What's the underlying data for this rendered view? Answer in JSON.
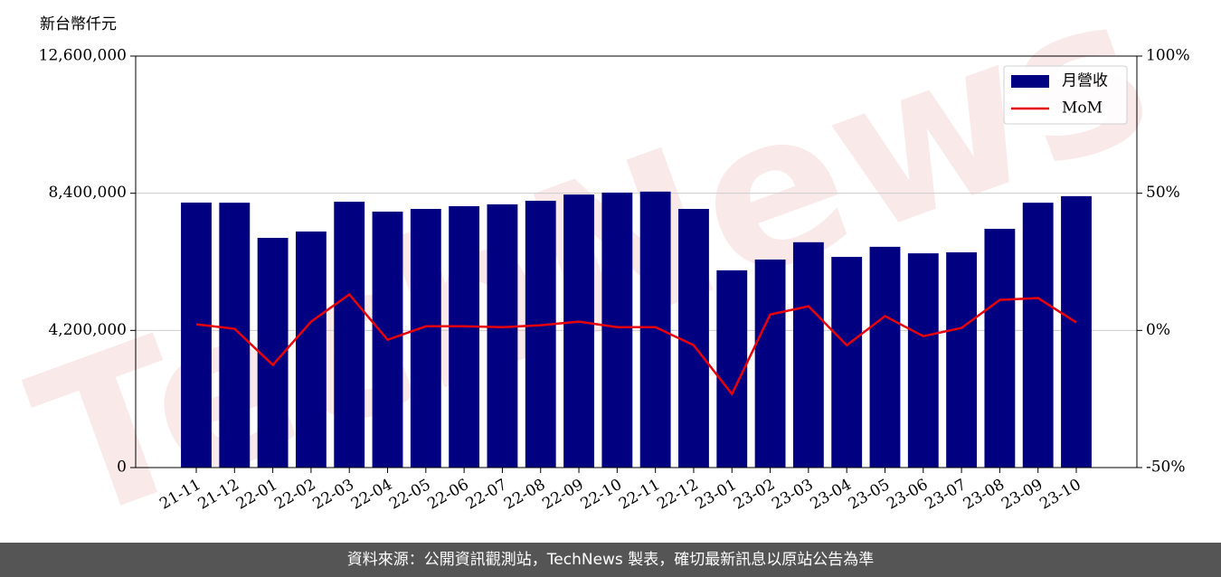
{
  "chart_data": {
    "type": "bar_line",
    "y_label": "新台幣仟元",
    "watermark": "TechNews",
    "footer": "資料來源：公開資訊觀測站，TechNews 製表，確切最新訊息以原站公告為準",
    "categories": [
      "21-11",
      "21-12",
      "22-01",
      "22-02",
      "22-03",
      "22-04",
      "22-05",
      "22-06",
      "22-07",
      "22-08",
      "22-09",
      "22-10",
      "22-11",
      "22-12",
      "23-01",
      "23-02",
      "23-03",
      "23-04",
      "23-05",
      "23-06",
      "23-07",
      "23-08",
      "23-09",
      "23-10"
    ],
    "series": [
      {
        "name": "月營收",
        "color": "#000080",
        "type": "bar",
        "values": [
          8114000,
          8110000,
          7034000,
          7228000,
          8140000,
          7837000,
          7920000,
          8003000,
          8060000,
          8170000,
          8360000,
          8420000,
          8450000,
          7920000,
          6040000,
          6370000,
          6900000,
          6450000,
          6760000,
          6560000,
          6590000,
          7310000,
          8110000,
          8310000
        ]
      },
      {
        "name": "MoM",
        "color": "#e8000b",
        "type": "line",
        "axis": "y2",
        "values": [
          2.2,
          0.6,
          -12.6,
          3.2,
          13.1,
          -3.4,
          1.5,
          1.5,
          1.2,
          1.9,
          3.2,
          1.2,
          1.2,
          -5.4,
          -23.2,
          5.8,
          8.8,
          -5.4,
          5.2,
          -2.1,
          0.9,
          11.1,
          11.8,
          2.9
        ]
      }
    ],
    "ylim": [
      0,
      12600000
    ],
    "yticks": [
      0,
      {
        "value": 4200000,
        "label": "4,200,000"
      },
      {
        "value": 8400000,
        "label": "8,400,000"
      },
      {
        "value": 12600000,
        "label": "12,600,000"
      }
    ],
    "y2lim": [
      -50,
      100
    ],
    "y2ticks": [
      {
        "value": -50,
        "label": "-50%"
      },
      {
        "value": 0,
        "label": "0%"
      },
      {
        "value": 50,
        "label": "50%"
      },
      {
        "value": 100,
        "label": "100%"
      }
    ],
    "grid": true,
    "legend": "upper right"
  }
}
